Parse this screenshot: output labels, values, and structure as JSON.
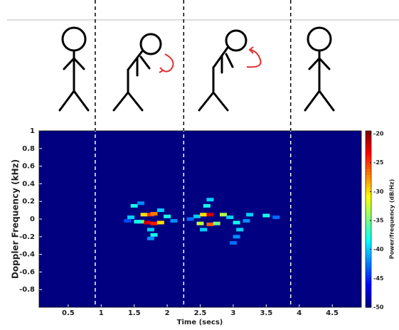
{
  "chart_data": {
    "type": "spectrogram",
    "xlabel": "Time (secs)",
    "ylabel": "Doppler Frequency (kHz)",
    "colorbar_label": "Power/frequency (dB/Hz)",
    "xlim": [
      0.06,
      4.94
    ],
    "ylim": [
      -1,
      1
    ],
    "xticks": [
      0.5,
      1,
      1.5,
      2,
      2.5,
      3,
      3.5,
      4,
      4.5
    ],
    "yticks": [
      1,
      0.8,
      0.6,
      0.4,
      0.2,
      0,
      -0.2,
      -0.4,
      -0.6,
      -0.8
    ],
    "clim": [
      -50,
      -19.5
    ],
    "cticks": [
      -20,
      -25,
      -30,
      -35,
      -40,
      -45,
      -50
    ],
    "colormap": "jet",
    "event_times": [
      0.91,
      2.25,
      3.87
    ],
    "x": [
      1.65,
      1.75,
      1.8,
      1.6,
      1.7,
      1.8,
      1.9,
      1.55,
      2.0,
      1.45,
      1.5,
      1.6,
      1.75,
      1.8,
      1.75,
      2.1,
      1.4,
      1.9,
      2.45,
      2.55,
      2.65,
      2.6,
      2.65,
      2.5,
      2.65,
      2.75,
      2.85,
      2.95,
      2.55,
      3.05,
      3.1,
      3.05,
      3.0,
      3.25,
      3.5,
      3.65,
      2.35,
      3.2
    ],
    "y": [
      0.05,
      0.05,
      0.06,
      -0.03,
      -0.04,
      -0.05,
      -0.04,
      -0.03,
      0.03,
      0.02,
      0.15,
      0.18,
      -0.12,
      -0.18,
      -0.22,
      -0.02,
      -0.02,
      0.1,
      0.03,
      0.05,
      0.05,
      0.15,
      0.22,
      -0.05,
      -0.06,
      -0.05,
      0.05,
      0.02,
      -0.12,
      -0.04,
      -0.12,
      -0.2,
      -0.27,
      0.05,
      0.04,
      0.02,
      0.0,
      -0.02
    ],
    "values": [
      -30,
      -25,
      -27,
      -35,
      -22,
      -24,
      -30,
      -38,
      -38,
      -40,
      -38,
      -42,
      -40,
      -38,
      -42,
      -42,
      -44,
      -40,
      -40,
      -30,
      -22,
      -38,
      -40,
      -33,
      -26,
      -35,
      -33,
      -40,
      -40,
      -38,
      -40,
      -42,
      -43,
      -40,
      -38,
      -43,
      -43,
      -42
    ]
  }
}
